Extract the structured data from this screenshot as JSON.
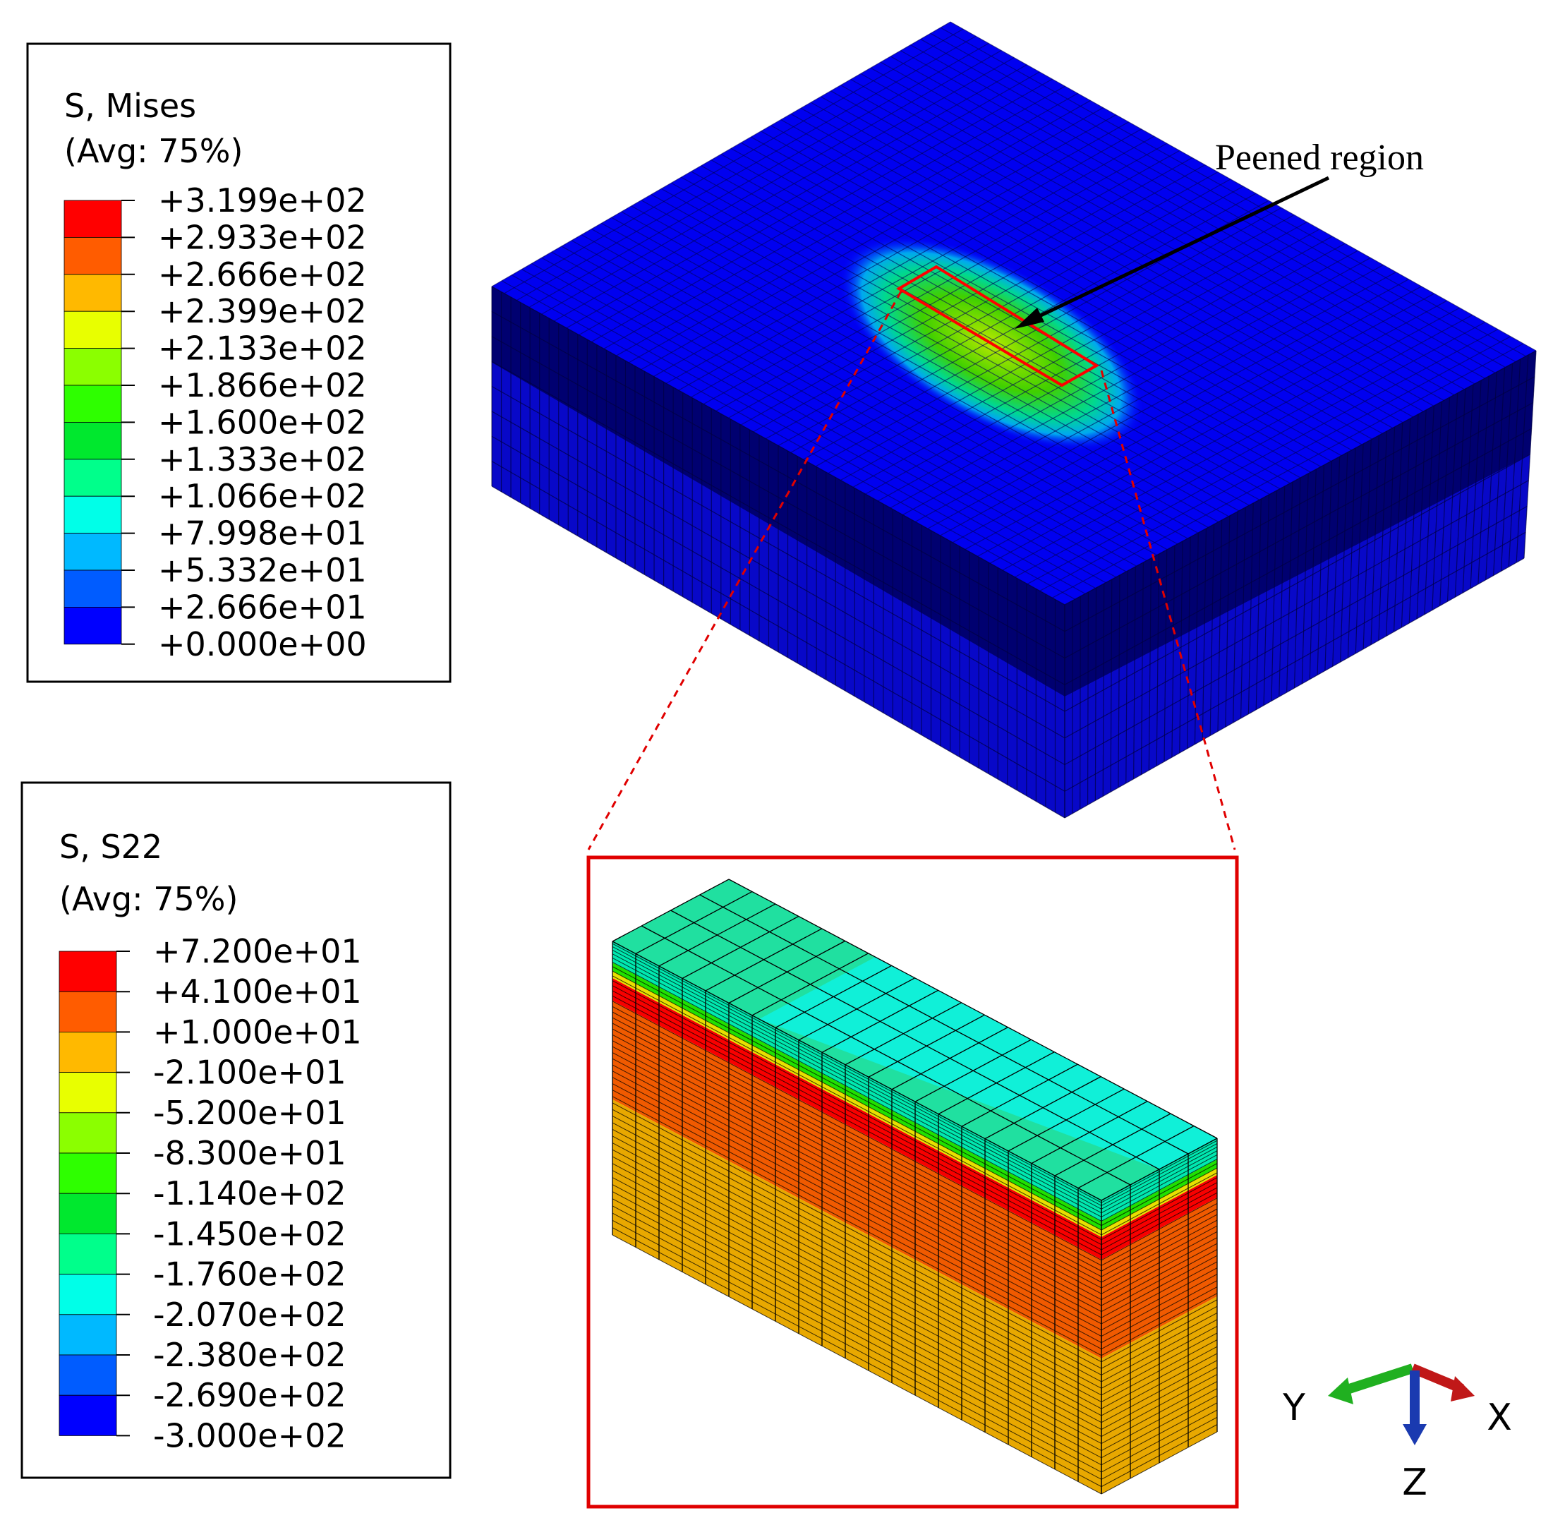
{
  "legends": [
    {
      "title": "S, Mises",
      "subtitle": "(Avg: 75%)",
      "labels": [
        "+3.199e+02",
        "+2.933e+02",
        "+2.666e+02",
        "+2.399e+02",
        "+2.133e+02",
        "+1.866e+02",
        "+1.600e+02",
        "+1.333e+02",
        "+1.066e+02",
        "+7.998e+01",
        "+5.332e+01",
        "+2.666e+01",
        "+0.000e+00"
      ],
      "colors": [
        "#ff0000",
        "#ff5c00",
        "#ffb900",
        "#e8ff00",
        "#8bff00",
        "#2eff00",
        "#00e82e",
        "#00ff8b",
        "#00ffe8",
        "#00b9ff",
        "#005cff",
        "#0000ff"
      ]
    },
    {
      "title": "S, S22",
      "subtitle": "(Avg: 75%)",
      "labels": [
        "+7.200e+01",
        "+4.100e+01",
        "+1.000e+01",
        "-2.100e+01",
        "-5.200e+01",
        "-8.300e+01",
        "-1.140e+02",
        "-1.450e+02",
        "-1.760e+02",
        "-2.070e+02",
        "-2.380e+02",
        "-2.690e+02",
        "-3.000e+02"
      ],
      "colors": [
        "#ff0000",
        "#ff5c00",
        "#ffb900",
        "#e8ff00",
        "#8bff00",
        "#2eff00",
        "#00e82e",
        "#00ff8b",
        "#00ffe8",
        "#00b9ff",
        "#005cff",
        "#0000ff"
      ]
    }
  ],
  "annotation": "Peened region",
  "triad": {
    "y": "Y",
    "x": "X",
    "z": "Z"
  }
}
